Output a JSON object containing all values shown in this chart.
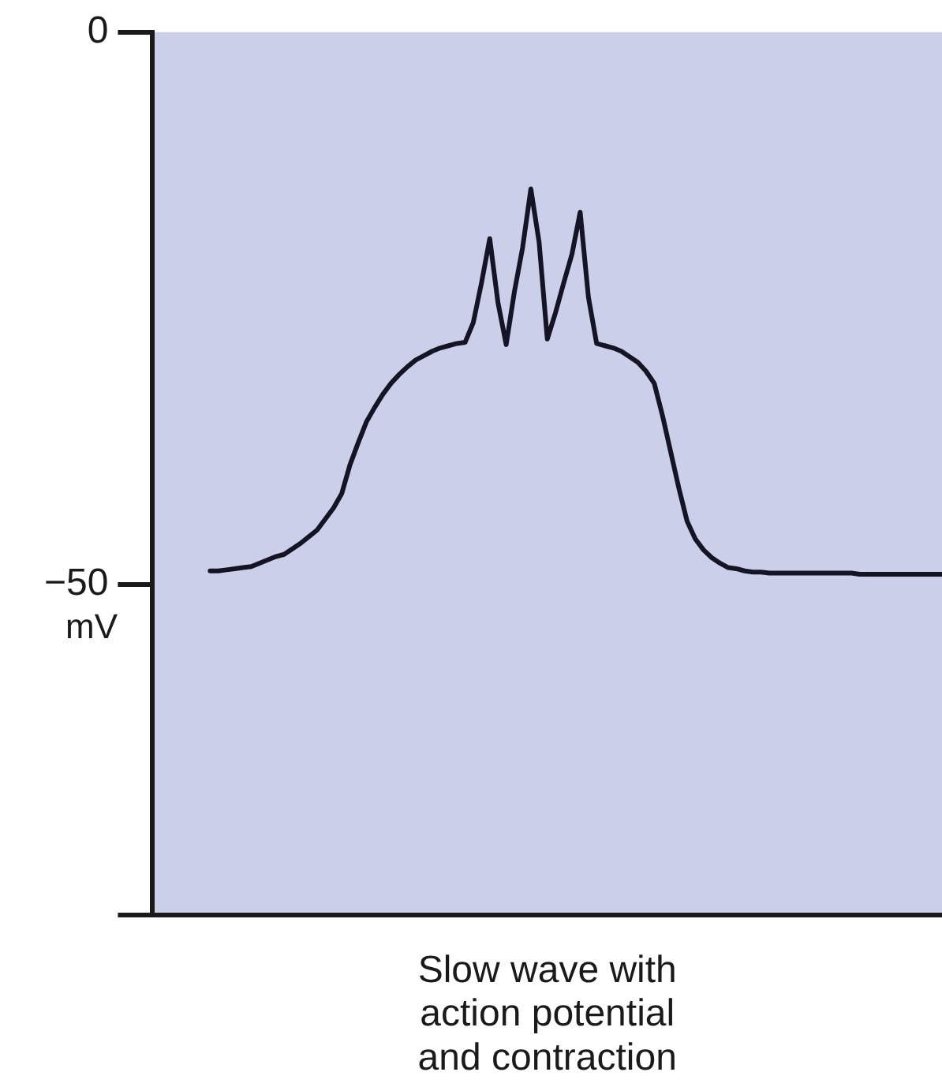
{
  "chart_data": {
    "type": "line",
    "xlabel": "Slow wave with\naction potential\nand contraction",
    "ylabel": "mV",
    "categories": [
      null,
      null,
      null,
      null,
      null,
      null,
      null,
      null,
      null,
      null,
      null,
      null,
      null,
      null,
      null,
      null,
      null,
      null,
      null,
      null,
      null,
      null,
      null,
      null,
      null,
      null,
      null,
      null,
      null,
      null,
      null,
      null,
      null,
      null,
      null,
      null,
      null,
      null,
      null,
      null,
      null,
      null,
      null,
      null,
      null,
      null,
      null,
      null,
      null,
      null,
      null,
      null,
      null,
      null,
      null,
      null,
      null,
      null,
      null,
      null,
      null,
      null,
      null,
      null,
      null,
      null,
      null,
      null,
      null,
      null,
      null,
      null,
      null,
      null,
      null,
      null,
      null,
      null,
      null,
      null,
      null,
      null,
      null,
      null,
      null,
      null,
      null,
      null,
      null,
      null,
      null,
      null,
      null,
      null,
      null,
      null,
      null
    ],
    "series": [
      {
        "color": "#141424",
        "values": [
          null,
          null,
          null,
          null,
          null,
          null,
          null,
          -48.8,
          -48.8,
          -48.7,
          -48.6,
          -48.5,
          -48.4,
          -48.1,
          -47.8,
          -47.5,
          -47.3,
          -46.8,
          -46.3,
          -45.7,
          -45.1,
          -44.1,
          -43.1,
          -41.8,
          -39.2,
          -37.2,
          -35.3,
          -34,
          -32.8,
          -31.8,
          -31,
          -30.3,
          -29.7,
          -29.3,
          -28.9,
          -28.6,
          -28.4,
          -28.2,
          -28.1,
          -26.3,
          -22.7,
          -18.7,
          -24.5,
          -28.3,
          -23.5,
          -19.5,
          -14.2,
          -19,
          -27.8,
          -25.4,
          -22.7,
          -20.1,
          -16.3,
          -24,
          -28.2,
          -28.4,
          -28.6,
          -28.9,
          -29.4,
          -29.9,
          -30.7,
          -31.8,
          -34.7,
          -38,
          -41.3,
          -44.3,
          -45.9,
          -46.9,
          -47.6,
          -48.1,
          -48.5,
          -48.6,
          -48.8,
          -48.9,
          -48.9,
          -49,
          -49,
          -49,
          -49,
          -49,
          -49,
          -49,
          -49,
          -49,
          -49,
          -49,
          -49.1,
          -49.1,
          -49.1,
          -49.1,
          -49.1,
          -49.1,
          -49.1,
          -49.1,
          -49.1,
          -49.1,
          -49.1
        ]
      }
    ],
    "ylim": [
      -80,
      0
    ],
    "yticks": [
      0,
      {
        "value": -50,
        "label": "−50"
      },
      {
        "value": -80,
        "label": null
      }
    ],
    "tick_labels": "y",
    "grid": false,
    "legend": false,
    "marker": "none",
    "line_style": "solid"
  }
}
